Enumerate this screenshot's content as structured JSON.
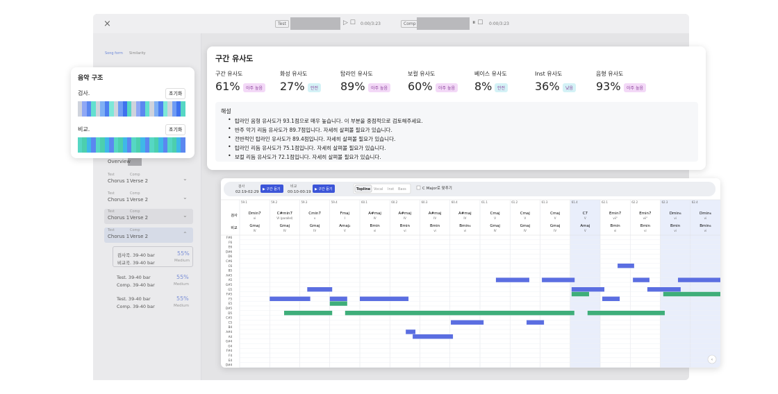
{
  "topbar": {
    "close": "×",
    "test_label": "Test",
    "test_time": "0:00/3:23",
    "comp_label": "Comp",
    "comp_time": "0:00/3:23"
  },
  "sidebar": {
    "tabs": [
      "Song form",
      "Similarity"
    ],
    "overview": "Overview",
    "pairs": [
      {
        "test": "Test",
        "comp": "Comp",
        "test_section": "Chorus 1",
        "comp_section": "Verse 2"
      },
      {
        "test": "Test",
        "comp": "Comp",
        "test_section": "Chorus 1",
        "comp_section": "Verse 2"
      },
      {
        "test": "Test",
        "comp": "Comp",
        "test_section": "Chorus 1",
        "comp_section": "Verse 2"
      },
      {
        "test": "Test",
        "comp": "Comp",
        "test_section": "Chorus 1",
        "comp_section": "Verse 2"
      }
    ],
    "details": [
      {
        "test": "검사곡. 39-40 bar",
        "comp": "비교곡. 39-40 bar",
        "score": "55%",
        "level": "Medium"
      },
      {
        "test": "Test.  39-40 bar",
        "comp": "Comp.  39-40 bar",
        "score": "55%",
        "level": "Medium"
      },
      {
        "test": "Test.  39-40 bar",
        "comp": "Comp.  39-40 bar",
        "score": "55%",
        "level": "Medium"
      }
    ]
  },
  "structure": {
    "title": "음악 구조",
    "rows": [
      {
        "label": "검사.",
        "button": "초기화"
      },
      {
        "label": "비교.",
        "button": "초기화"
      }
    ]
  },
  "similarity": {
    "title": "구간 유사도",
    "metrics": [
      {
        "label": "구간 유사도",
        "value": "61%",
        "badge": "아주 높음",
        "badge_color": "#f3d9f7"
      },
      {
        "label": "화성 유사도",
        "value": "27%",
        "badge": "안전",
        "badge_color": "#d4f2f6"
      },
      {
        "label": "탑라인 유사도",
        "value": "89%",
        "badge": "아주 높음",
        "badge_color": "#f3d9f7"
      },
      {
        "label": "보컬 유사도",
        "value": "60%",
        "badge": "아주 높음",
        "badge_color": "#f3d9f7"
      },
      {
        "label": "베이스 유사도",
        "value": "8%",
        "badge": "안전",
        "badge_color": "#d4f2f6"
      },
      {
        "label": "Inst 유사도",
        "value": "36%",
        "badge": "낮음",
        "badge_color": "#d4f2f6"
      },
      {
        "label": "음형 유사도",
        "value": "93%",
        "badge": "아주 높음",
        "badge_color": "#f3d9f7"
      }
    ],
    "commentary": {
      "title": "해설",
      "items": [
        "탑라인 음형 유사도가 93.1점으로 매우 높습니다. 이 부분을 중점적으로 검토해주세요.",
        "반주 악기 리듬 유사도가 89.7점입니다. 자세히 살펴볼 필요가 있습니다.",
        "전반적인 탑라인 유사도가 89.4점입니다. 자세히 살펴볼 필요가 있습니다.",
        "탑라인 리듬 유사도가 75.1점입니다. 자세히 살펴볼 필요가 있습니다.",
        "보컬 리듬 유사도가 72.1점입니다. 자세히 살펴볼 필요가 있습니다."
      ]
    }
  },
  "roll": {
    "test_label": "검사",
    "test_range": "02:19-02:29",
    "comp_label": "비교",
    "comp_range": "00:10-00:19",
    "play": "▶ 구간 듣기",
    "tabs": [
      "Topline",
      "Vocal",
      "Inst",
      "Bass"
    ],
    "checkbox": "C Major로 맞추기",
    "row_labels": [
      "검사",
      "비교"
    ],
    "columns": [
      {
        "bar": "59.1",
        "test_chord": "Dmin7",
        "test_roman": "vi",
        "comp_chord": "Gmaj",
        "comp_roman": "IV",
        "selected": false
      },
      {
        "bar": "59.2",
        "test_chord": "C#min7",
        "test_roman": "VI (parallel)",
        "comp_chord": "Gmaj",
        "comp_roman": "IV",
        "selected": false
      },
      {
        "bar": "59.3",
        "test_chord": "Cmin7",
        "test_roman": "v",
        "comp_chord": "Gmaj",
        "comp_roman": "IV",
        "selected": false
      },
      {
        "bar": "59.4",
        "test_chord": "Fmaj",
        "test_roman": "I",
        "comp_chord": "Amaj₂",
        "comp_roman": "V",
        "selected": false
      },
      {
        "bar": "60.1",
        "test_chord": "A#maj",
        "test_roman": "IV",
        "comp_chord": "Bmin",
        "comp_roman": "vi",
        "selected": false
      },
      {
        "bar": "60.2",
        "test_chord": "A#maj",
        "test_roman": "IV",
        "comp_chord": "Bmin",
        "comp_roman": "vi",
        "selected": false
      },
      {
        "bar": "60.3",
        "test_chord": "A#maj",
        "test_roman": "IV",
        "comp_chord": "Bmin",
        "comp_roman": "vi",
        "selected": false
      },
      {
        "bar": "60.4",
        "test_chord": "A#maj",
        "test_roman": "IV",
        "comp_chord": "Bmin₆",
        "comp_roman": "vi",
        "selected": false
      },
      {
        "bar": "61.1",
        "test_chord": "Cmaj",
        "test_roman": "V",
        "comp_chord": "Gmaj",
        "comp_roman": "IV",
        "selected": false
      },
      {
        "bar": "61.2",
        "test_chord": "Cmaj",
        "test_roman": "V",
        "comp_chord": "Gmaj",
        "comp_roman": "IV",
        "selected": false
      },
      {
        "bar": "61.3",
        "test_chord": "Cmaj",
        "test_roman": "V",
        "comp_chord": "Gmaj",
        "comp_roman": "IV",
        "selected": false
      },
      {
        "bar": "61.4",
        "test_chord": "C7",
        "test_roman": "V",
        "comp_chord": "Amaj",
        "comp_roman": "V",
        "selected": true
      },
      {
        "bar": "62.1",
        "test_chord": "Emin7",
        "test_roman": "vii°",
        "comp_chord": "Bmin",
        "comp_roman": "vi",
        "selected": false
      },
      {
        "bar": "62.2",
        "test_chord": "Emin7",
        "test_roman": "vii°",
        "comp_chord": "Bmin",
        "comp_roman": "vi",
        "selected": false
      },
      {
        "bar": "62.3",
        "test_chord": "Dmin₆",
        "test_roman": "vi",
        "comp_chord": "Bmin",
        "comp_roman": "vi",
        "selected": true
      },
      {
        "bar": "62.4",
        "test_chord": "Dmin₆",
        "test_roman": "vi",
        "comp_chord": "Bmin₆",
        "comp_roman": "vi",
        "selected": true
      }
    ],
    "pitches": [
      "F#6",
      "F6",
      "E6",
      "D#6",
      "D6",
      "C#6",
      "C6",
      "B5",
      "A#5",
      "A5",
      "G#5",
      "G5",
      "F#5",
      "F5",
      "E5",
      "D#5",
      "D5",
      "C#5",
      "C5",
      "B4",
      "A#4",
      "A4",
      "G#4",
      "G4",
      "F#4",
      "F4",
      "E4",
      "D#4"
    ],
    "test_color": "#5b6ee1",
    "comp_color": "#3fae7a",
    "test_notes": [
      {
        "pitch": "F5",
        "start": 1.0,
        "length": 1.35
      },
      {
        "pitch": "G5",
        "start": 2.25,
        "length": 0.83
      },
      {
        "pitch": "F5",
        "start": 3.0,
        "length": 0.58
      },
      {
        "pitch": "F5",
        "start": 4.0,
        "length": 1.62
      },
      {
        "pitch": "A#4",
        "start": 5.53,
        "length": 0.32
      },
      {
        "pitch": "A4",
        "start": 5.76,
        "length": 1.34
      },
      {
        "pitch": "C5",
        "start": 7.03,
        "length": 1.09
      },
      {
        "pitch": "A5",
        "start": 8.53,
        "length": 1.11
      },
      {
        "pitch": "C5",
        "start": 9.55,
        "length": 0.58
      },
      {
        "pitch": "A5",
        "start": 10.06,
        "length": 1.09
      },
      {
        "pitch": "G5",
        "start": 11.05,
        "length": 1.09
      },
      {
        "pitch": "F5",
        "start": 12.07,
        "length": 0.58
      },
      {
        "pitch": "C6",
        "start": 12.58,
        "length": 0.55
      },
      {
        "pitch": "A5",
        "start": 13.09,
        "length": 0.55
      },
      {
        "pitch": "G5",
        "start": 13.57,
        "length": 1.11
      },
      {
        "pitch": "A5",
        "start": 14.59,
        "length": 1.41
      }
    ],
    "comp_notes": [
      {
        "pitch": "D5",
        "start": 1.48,
        "length": 1.6
      },
      {
        "pitch": "E5",
        "start": 3.0,
        "length": 0.58
      },
      {
        "pitch": "D5",
        "start": 3.51,
        "length": 7.63
      },
      {
        "pitch": "F#5",
        "start": 11.05,
        "length": 0.58
      },
      {
        "pitch": "D5",
        "start": 11.58,
        "length": 2.57
      },
      {
        "pitch": "F#5",
        "start": 14.1,
        "length": 1.9
      }
    ]
  }
}
